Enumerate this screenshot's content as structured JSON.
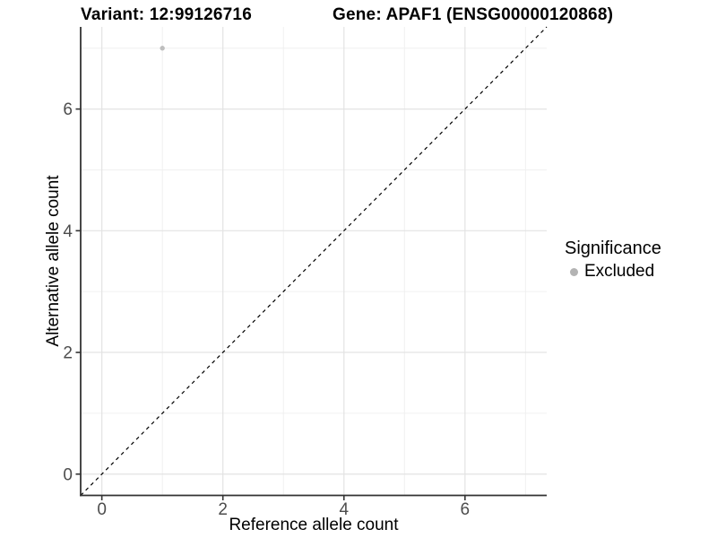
{
  "chart_data": {
    "type": "scatter",
    "title_left": "Variant: 12:99126716",
    "title_right": "Gene: APAF1 (ENSG00000120868)",
    "xlabel": "Reference allele count",
    "ylabel": "Alternative allele count",
    "xlim": [
      -0.35,
      7.35
    ],
    "ylim": [
      -0.35,
      7.35
    ],
    "x_ticks": [
      0,
      2,
      4,
      6
    ],
    "y_ticks": [
      0,
      2,
      4,
      6
    ],
    "x_minor_gridlines": [
      1,
      3,
      5,
      7
    ],
    "y_minor_gridlines": [
      1,
      3,
      5,
      7
    ],
    "grid": true,
    "points": [
      {
        "x": 1,
        "y": 7,
        "series": "Excluded"
      }
    ],
    "reference_line": {
      "kind": "identity",
      "equation": "y = x",
      "style": "dashed",
      "color": "#000000"
    },
    "legend": {
      "position": "right",
      "title": "Significance",
      "items": [
        {
          "label": "Excluded",
          "color": "#B3B3B3"
        }
      ]
    },
    "colors": {
      "point": "#BEBEBE",
      "grid_major": "#E3E3E3",
      "grid_minor": "#F0F0F0",
      "axis_line": "#333333",
      "tick_label": "#4D4D4D",
      "background": "#FFFFFF"
    }
  }
}
